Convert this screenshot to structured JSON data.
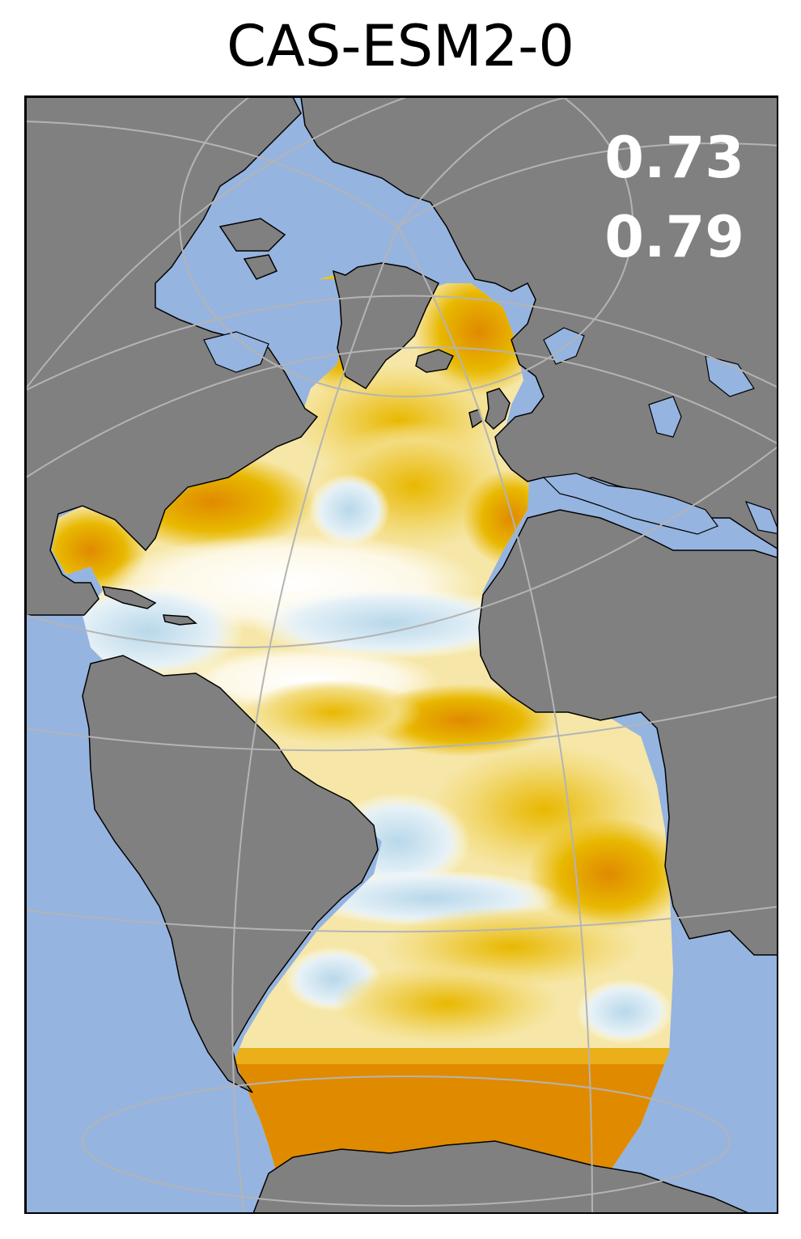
{
  "title": "CAS-ESM2-0",
  "stats": {
    "value1": "0.73",
    "value2": "0.79"
  },
  "colors": {
    "ocean": "#95b4e0",
    "land": "#808080",
    "gridline": "#b4b4b4",
    "coastline": "#000000",
    "positive_strong": "#e08a00",
    "positive_mid": "#e8b800",
    "positive_light": "#f6e8a0",
    "neutral": "#ffffff",
    "negative_light": "#c8e0ee"
  }
}
